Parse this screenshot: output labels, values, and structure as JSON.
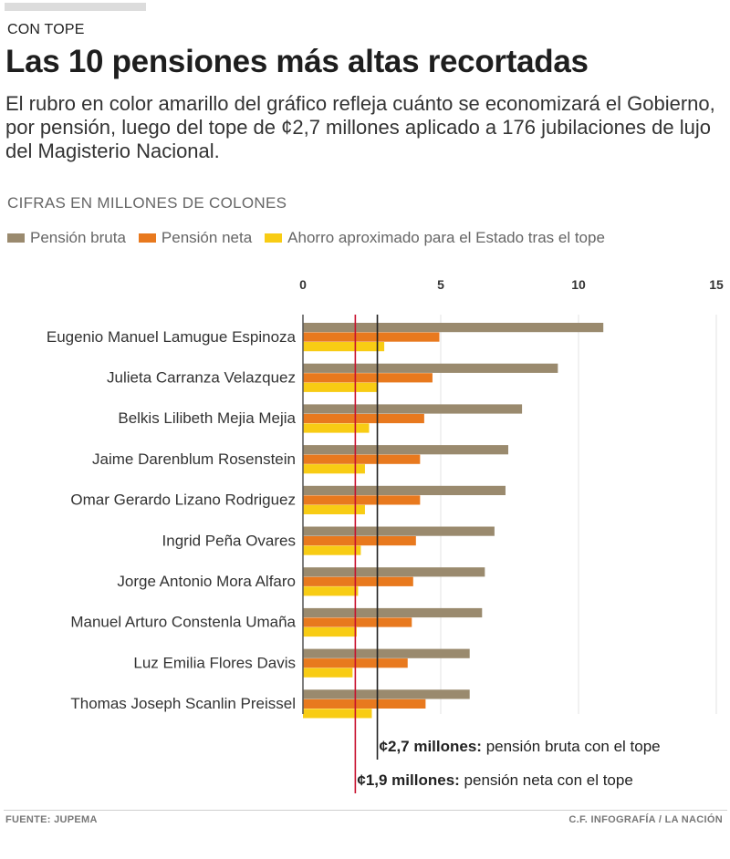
{
  "header": {
    "kicker": "CON TOPE",
    "title": "Las 10 pensiones más altas recortadas",
    "subtitle": "El rubro en color amarillo del gráfico refleja cuánto se economizará el Gobierno, por pensión, luego del tope de ¢2,7 millones aplicado a 176 jubilaciones de lujo del Magisterio Nacional."
  },
  "units_label": "CIFRAS EN MILLONES DE COLONES",
  "footer": {
    "source": "FUENTE: JUPEMA",
    "credit": "C.F. INFOGRAFÍA / LA NACIÓN"
  },
  "colors": {
    "bruta": "#9a8a6e",
    "neta": "#e8791e",
    "ahorro": "#f8cc14",
    "line_bruta": "#222222",
    "line_neta": "#c8102e"
  },
  "chart_data": {
    "type": "bar",
    "orientation": "horizontal",
    "xlim": [
      0,
      15
    ],
    "ticks": [
      0,
      5,
      10,
      15
    ],
    "categories": [
      "Eugenio Manuel Lamugue Espinoza",
      "Julieta Carranza Velazquez",
      "Belkis Lilibeth Mejia Mejia",
      "Jaime Darenblum Rosenstein",
      "Omar Gerardo Lizano Rodriguez",
      "Ingrid Peña Ovares",
      "Jorge Antonio Mora Alfaro",
      "Manuel Arturo Constenla Umaña",
      "Luz Emilia Flores Davis",
      "Thomas Joseph Scanlin Preissel"
    ],
    "series": [
      {
        "name": "Pensión bruta",
        "key": "bruta",
        "values": [
          10.9,
          9.25,
          7.95,
          7.45,
          7.35,
          6.95,
          6.6,
          6.5,
          6.05,
          6.05
        ]
      },
      {
        "name": "Pensión neta",
        "key": "neta",
        "values": [
          4.95,
          4.7,
          4.4,
          4.25,
          4.25,
          4.1,
          4.0,
          3.95,
          3.8,
          4.45
        ]
      },
      {
        "name": "Ahorro aproximado para el Estado tras el tope",
        "key": "ahorro",
        "values": [
          2.95,
          2.7,
          2.4,
          2.25,
          2.25,
          2.1,
          2.0,
          1.95,
          1.8,
          2.5
        ]
      }
    ],
    "reference_lines": [
      {
        "key": "line_bruta",
        "value": 2.7,
        "label_bold": "¢2,7 millones:",
        "label_rest": " pensión bruta con el tope"
      },
      {
        "key": "line_neta",
        "value": 1.9,
        "label_bold": "¢1,9 millones:",
        "label_rest": " pensión neta con el tope"
      }
    ],
    "title": "Las 10 pensiones más altas recortadas"
  }
}
